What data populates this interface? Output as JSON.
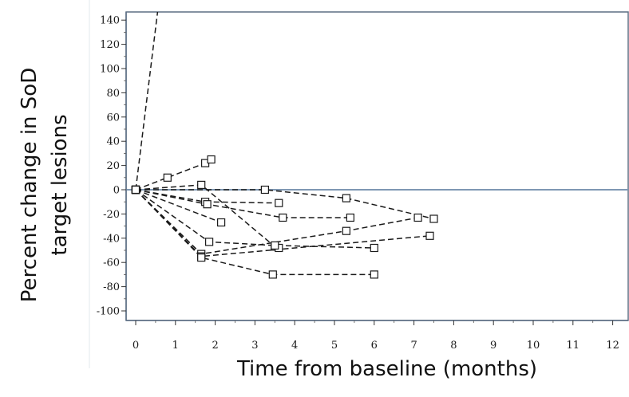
{
  "chart_data": {
    "type": "line",
    "title": "",
    "xlabel": "Time from baseline (months)",
    "ylabel_lines": [
      "Percent change in SoD",
      "target lesions"
    ],
    "xlim": [
      0,
      12
    ],
    "ylim": [
      -100,
      140
    ],
    "xticks": [
      0,
      1,
      2,
      3,
      4,
      5,
      6,
      7,
      8,
      9,
      10,
      11,
      12
    ],
    "yticks": [
      -100,
      -80,
      -60,
      -40,
      -20,
      0,
      20,
      40,
      60,
      80,
      100,
      120,
      140
    ],
    "reference_line_y": 0,
    "grid": false,
    "legend": "none",
    "colors": {
      "line": "#1a1a1a",
      "reference": "#7f98b3",
      "frame": "#5d6f84"
    },
    "series": [
      {
        "x": [
          0,
          0.6
        ],
        "y": [
          0,
          160
        ],
        "markers": [
          false,
          false
        ]
      },
      {
        "x": [
          0,
          0.8,
          1.75,
          1.9
        ],
        "y": [
          0,
          10,
          22,
          25
        ]
      },
      {
        "x": [
          0,
          1.65,
          3.5,
          3.6
        ],
        "y": [
          0,
          4,
          -47,
          -48
        ]
      },
      {
        "x": [
          0,
          3.25,
          5.3,
          7.5
        ],
        "y": [
          0,
          0,
          -7,
          -24
        ]
      },
      {
        "x": [
          0,
          1.75,
          3.6
        ],
        "y": [
          0,
          -10,
          -11
        ]
      },
      {
        "x": [
          0,
          1.8,
          3.7,
          5.4
        ],
        "y": [
          0,
          -12,
          -23,
          -23
        ]
      },
      {
        "x": [
          0,
          2.15
        ],
        "y": [
          0,
          -27
        ]
      },
      {
        "x": [
          0,
          1.85,
          3.5,
          6.0
        ],
        "y": [
          0,
          -43,
          -46,
          -48
        ]
      },
      {
        "x": [
          0,
          1.65,
          5.3,
          7.1
        ],
        "y": [
          0,
          -53,
          -34,
          -23
        ]
      },
      {
        "x": [
          0,
          1.65,
          7.4
        ],
        "y": [
          0,
          -55,
          -38
        ]
      },
      {
        "x": [
          0,
          1.65,
          3.45,
          6.0
        ],
        "y": [
          0,
          -56,
          -70,
          -70
        ]
      }
    ]
  }
}
